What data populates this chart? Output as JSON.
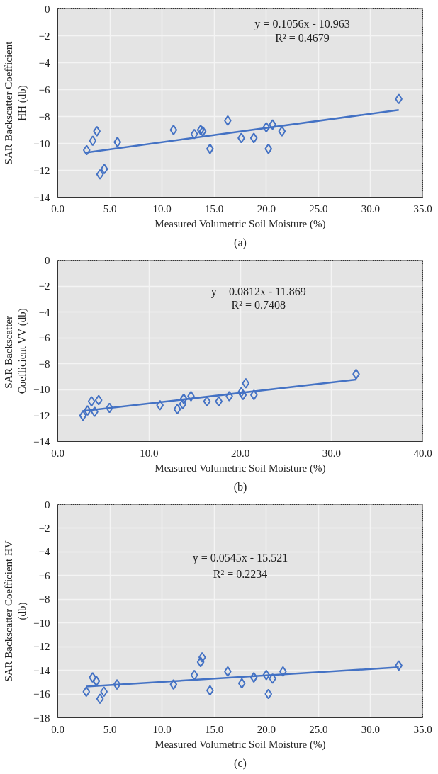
{
  "chart_data": [
    {
      "type": "scatter",
      "xlabel": "Measured Volumetric Soil Moisture (%)",
      "ylabel": "SAR Backscatter Coefficient\nHH (db)",
      "annotations": [
        "y = 0.1056x - 10.963",
        "R² = 0.4679",
        "(a)"
      ],
      "xlim": [
        0,
        35
      ],
      "ylim": [
        -14,
        0
      ],
      "xticks": [
        {
          "value": 0,
          "label": "0.0"
        },
        {
          "value": 5,
          "label": "5.0"
        },
        {
          "value": 10,
          "label": "10.0"
        },
        {
          "value": 15,
          "label": "15.0"
        },
        {
          "value": 20,
          "label": "20.0"
        },
        {
          "value": 25,
          "label": "25.0"
        },
        {
          "value": 30,
          "label": "30.0"
        },
        {
          "value": 35,
          "label": "35.0"
        }
      ],
      "yticks": [
        -14,
        -12,
        -10,
        -8,
        -6,
        -4,
        -2,
        0
      ],
      "grid": true,
      "series": [
        {
          "marker": "diamond",
          "color": "#4472c4",
          "x": [
            2.77,
            3.35,
            3.75,
            4.05,
            4.46,
            5.72,
            11.1,
            13.1,
            13.7,
            13.9,
            14.6,
            16.3,
            17.6,
            18.8,
            20.0,
            20.2,
            20.6,
            21.5,
            32.7
          ],
          "values": [
            -10.5,
            -9.8,
            -9.1,
            -12.3,
            -11.9,
            -9.9,
            -9.0,
            -9.3,
            -9.0,
            -9.1,
            -10.4,
            -8.3,
            -9.6,
            -9.6,
            -8.8,
            -10.4,
            -8.6,
            -9.1,
            -6.7
          ]
        },
        {
          "type": "line",
          "color": "#4472c4",
          "x": [
            2.7,
            32.7
          ],
          "values": [
            -10.68,
            -7.51
          ]
        }
      ]
    },
    {
      "type": "scatter",
      "xlabel": "Measured Volumetric Soil Moisture (%)",
      "ylabel": "SAR  Backscatter\nCoefficient VV (db)",
      "annotations": [
        "y = 0.0812x - 11.869",
        "R² = 0.7408",
        "(b)"
      ],
      "xlim": [
        0,
        40
      ],
      "ylim": [
        -14,
        0
      ],
      "xticks": [
        {
          "value": 0,
          "label": "0.0"
        },
        {
          "value": 10,
          "label": "10.0"
        },
        {
          "value": 20,
          "label": "20.0"
        },
        {
          "value": 30,
          "label": "30.0"
        },
        {
          "value": 40,
          "label": "40.0"
        }
      ],
      "yticks": [
        -14,
        -12,
        -10,
        -8,
        -6,
        -4,
        -2,
        0
      ],
      "grid": true,
      "series": [
        {
          "marker": "diamond",
          "color": "#4472c4",
          "x": [
            2.76,
            3.26,
            3.7,
            4.04,
            4.48,
            5.67,
            11.2,
            13.1,
            13.7,
            13.8,
            14.6,
            16.35,
            17.65,
            18.8,
            20.1,
            20.3,
            20.6,
            21.5,
            32.7
          ],
          "values": [
            -12.0,
            -11.6,
            -10.9,
            -11.7,
            -10.8,
            -11.4,
            -11.2,
            -11.5,
            -11.1,
            -10.7,
            -10.5,
            -10.9,
            -10.9,
            -10.5,
            -10.2,
            -10.4,
            -9.5,
            -10.4,
            -8.8
          ]
        },
        {
          "type": "line",
          "color": "#4472c4",
          "x": [
            2.7,
            32.7
          ],
          "values": [
            -11.65,
            -9.21
          ]
        }
      ]
    },
    {
      "type": "scatter",
      "xlabel": "Measured Volumetric Soil Moisture (%)",
      "ylabel": "SAR Backscatter Coefficient HV\n(db)",
      "annotations": [
        "y = 0.0545x - 15.521",
        "R² = 0.2234",
        "(c)"
      ],
      "xlim": [
        0,
        35
      ],
      "ylim": [
        -18,
        0
      ],
      "xticks": [
        {
          "value": 0,
          "label": "0.0"
        },
        {
          "value": 5,
          "label": "5.0"
        },
        {
          "value": 10,
          "label": "10.0"
        },
        {
          "value": 15,
          "label": "15.0"
        },
        {
          "value": 20,
          "label": "20.0"
        },
        {
          "value": 25,
          "label": "25.0"
        },
        {
          "value": 30,
          "label": "30.0"
        },
        {
          "value": 35,
          "label": "35.0"
        }
      ],
      "yticks": [
        -18,
        -16,
        -14,
        -12,
        -10,
        -8,
        -6,
        -4,
        -2,
        0
      ],
      "grid": true,
      "series": [
        {
          "marker": "diamond",
          "color": "#4472c4",
          "x": [
            2.74,
            3.34,
            3.7,
            4.05,
            4.43,
            5.68,
            11.1,
            13.1,
            13.7,
            13.85,
            14.6,
            16.3,
            17.65,
            18.8,
            20.0,
            20.2,
            20.6,
            21.6,
            32.7
          ],
          "values": [
            -15.8,
            -14.6,
            -14.9,
            -16.4,
            -15.8,
            -15.2,
            -15.2,
            -14.4,
            -13.3,
            -12.9,
            -15.7,
            -14.1,
            -15.1,
            -14.6,
            -14.4,
            -16.0,
            -14.7,
            -14.1,
            -13.6
          ]
        },
        {
          "type": "line",
          "color": "#4472c4",
          "x": [
            2.7,
            32.7
          ],
          "values": [
            -15.37,
            -13.74
          ]
        }
      ]
    }
  ]
}
